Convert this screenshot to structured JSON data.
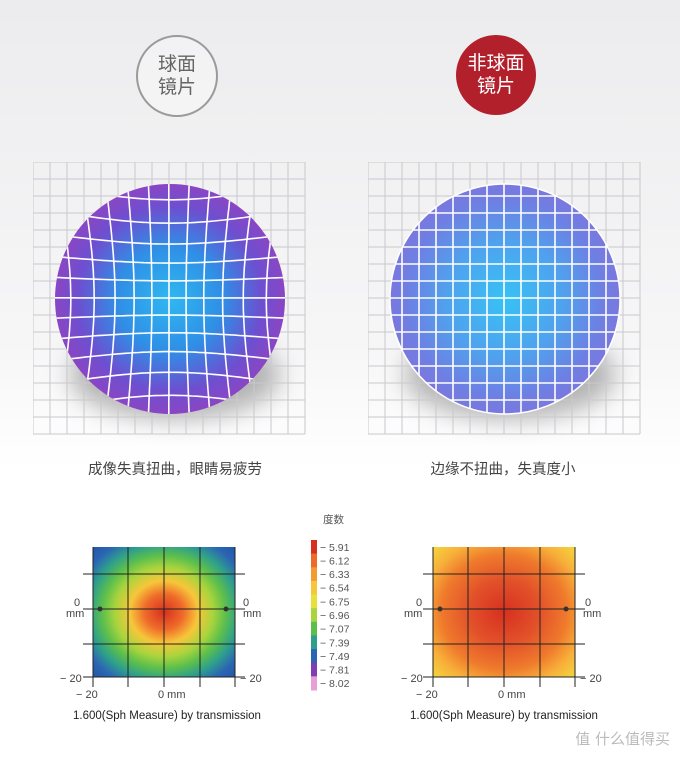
{
  "badges": {
    "spherical": "球面\n镜片",
    "aspherical": "非球面\n镜片"
  },
  "captions": {
    "left": "成像失真扭曲，眼睛易疲劳",
    "right": "边缘不扭曲，失真度小"
  },
  "legend": {
    "title": "度数",
    "values": [
      "5.91",
      "6.12",
      "6.33",
      "6.54",
      "6.75",
      "6.96",
      "7.07",
      "7.39",
      "7.49",
      "7.81",
      "8.02"
    ],
    "colors": [
      "#d7301f",
      "#ef6a2a",
      "#f59a2f",
      "#f7c63a",
      "#e6e23a",
      "#a9d43d",
      "#5cbf4c",
      "#2e9f8c",
      "#2b66b3",
      "#7d3fb3",
      "#e89fd6"
    ]
  },
  "maps": {
    "tick_neg": "− 20",
    "tick_zero": "0",
    "unit": "mm",
    "x_mid": "0 mm",
    "caption": "1.600(Sph Measure) by transmission"
  },
  "watermark": "值 什么值得买",
  "colors": {
    "accent": "#b2202b"
  }
}
